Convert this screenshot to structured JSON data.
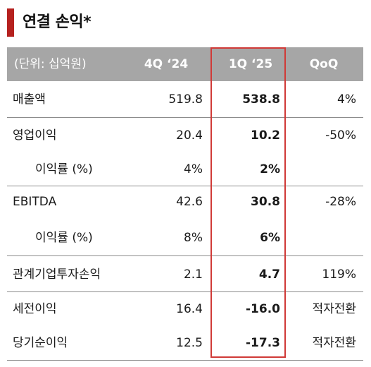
{
  "title": "연결 손익*",
  "header": {
    "unit": "(단위: 십억원)",
    "prev": "4Q ‘24",
    "curr": "1Q ‘25",
    "qoq": "QoQ"
  },
  "rows": [
    {
      "label": "매출액",
      "prev": "519.8",
      "curr": "538.8",
      "qoq": "4%"
    },
    {
      "label": "영업이익",
      "prev": "20.4",
      "curr": "10.2",
      "qoq": "-50%"
    },
    {
      "label": "이익률 (%)",
      "prev": "4%",
      "curr": "2%",
      "qoq": ""
    },
    {
      "label": "EBITDA",
      "prev": "42.6",
      "curr": "30.8",
      "qoq": "-28%"
    },
    {
      "label": "이익률 (%)",
      "prev": "8%",
      "curr": "6%",
      "qoq": ""
    },
    {
      "label": "관계기업투자손익",
      "prev": "2.1",
      "curr": "4.7",
      "qoq": "119%"
    },
    {
      "label": "세전이익",
      "prev": "16.4",
      "curr": "-16.0",
      "qoq": "적자전환"
    },
    {
      "label": "당기순이익",
      "prev": "12.5",
      "curr": "-17.3",
      "qoq": "적자전환"
    }
  ],
  "colors": {
    "accent": "#b5211f",
    "header_bg": "#a6a6a6",
    "highlight_border": "#d03a37"
  }
}
